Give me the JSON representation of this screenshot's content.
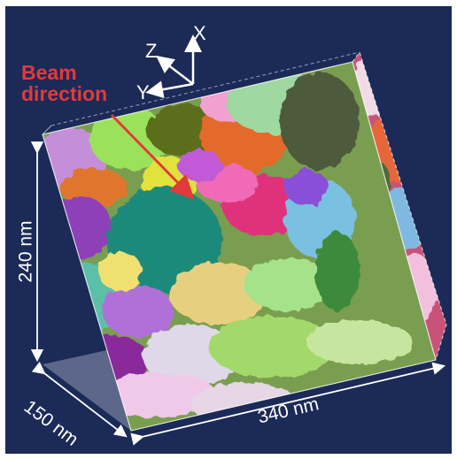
{
  "annotation": {
    "line1": "Beam",
    "line2": "direction",
    "color": "#e23a3a"
  },
  "axes": {
    "x": "X",
    "y": "Y",
    "z": "Z"
  },
  "dimensions": {
    "height": "240 nm",
    "depth": "150 nm",
    "width": "340 nm"
  },
  "colors": {
    "background": "#1b2a57",
    "label": "#ffffff"
  }
}
